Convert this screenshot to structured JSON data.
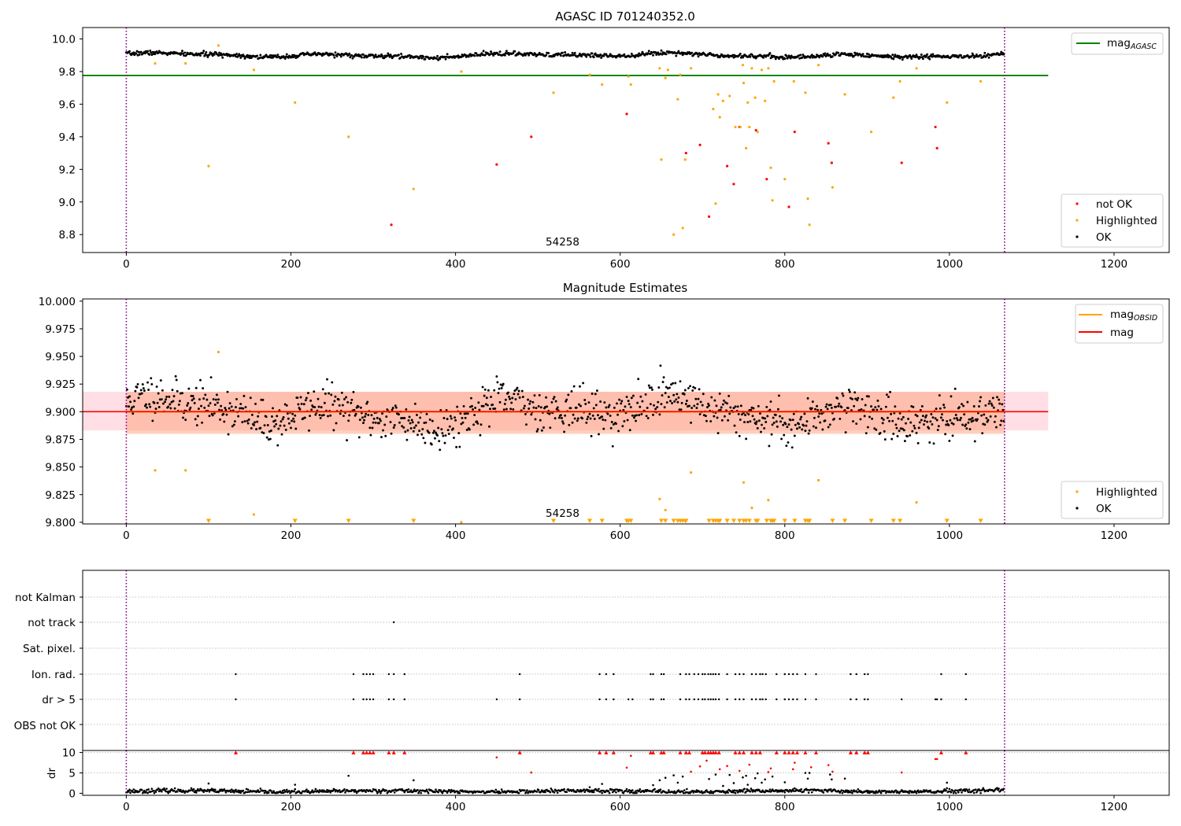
{
  "chart_data": [
    {
      "type": "scatter",
      "title": "AGASC ID 701240352.0",
      "xlim": [
        -53,
        1267
      ],
      "ylim": [
        8.69,
        10.07
      ],
      "xticks": [
        0,
        200,
        400,
        600,
        800,
        1000,
        1200
      ],
      "yticks": [
        8.8,
        9.0,
        9.2,
        9.4,
        9.6,
        9.8,
        10.0
      ],
      "ytick_decimals": 1,
      "grid": false,
      "obsid_label": "54258",
      "obsid_label_x": 530,
      "vlines": [
        0,
        1067
      ],
      "hline": {
        "name": "mag_AGASC",
        "y": 9.776,
        "x": [
          -53,
          1120
        ],
        "color": "#008000"
      },
      "legend_upper": [
        {
          "label": "mag",
          "sub": "AGASC",
          "color": "#008000"
        }
      ],
      "legend_lower": [
        {
          "label": "not OK",
          "color": "#ff0000"
        },
        {
          "label": "Highlighted",
          "color": "#ffa500"
        },
        {
          "label": "OK",
          "color": "#000000"
        }
      ],
      "ok_band": {
        "center": 9.9,
        "noise": 0.012,
        "n": 1067
      },
      "series": [
        {
          "name": "not OK",
          "color": "#ff0000",
          "points": [
            [
              322,
              8.86
            ],
            [
              450,
              9.23
            ],
            [
              492,
              9.4
            ],
            [
              608,
              9.54
            ],
            [
              680,
              9.3
            ],
            [
              697,
              9.35
            ],
            [
              708,
              8.91
            ],
            [
              730,
              9.22
            ],
            [
              738,
              9.11
            ],
            [
              745,
              9.46
            ],
            [
              765,
              9.44
            ],
            [
              778,
              9.14
            ],
            [
              805,
              8.97
            ],
            [
              812,
              9.43
            ],
            [
              853,
              9.36
            ],
            [
              857,
              9.24
            ],
            [
              942,
              9.24
            ],
            [
              983,
              9.46
            ],
            [
              985,
              9.33
            ]
          ]
        },
        {
          "name": "Highlighted",
          "color": "#ffa500",
          "points": [
            [
              35,
              9.85
            ],
            [
              72,
              9.85
            ],
            [
              100,
              9.22
            ],
            [
              112,
              9.96
            ],
            [
              155,
              9.81
            ],
            [
              205,
              9.61
            ],
            [
              270,
              9.4
            ],
            [
              349,
              9.08
            ],
            [
              407,
              9.8
            ],
            [
              519,
              9.67
            ],
            [
              563,
              9.78
            ],
            [
              578,
              9.72
            ],
            [
              610,
              9.77
            ],
            [
              613,
              9.72
            ],
            [
              648,
              9.82
            ],
            [
              650,
              9.26
            ],
            [
              655,
              9.76
            ],
            [
              658,
              9.81
            ],
            [
              665,
              8.8
            ],
            [
              670,
              9.63
            ],
            [
              673,
              9.78
            ],
            [
              676,
              8.84
            ],
            [
              679,
              9.26
            ],
            [
              686,
              9.82
            ],
            [
              713,
              9.57
            ],
            [
              716,
              8.99
            ],
            [
              719,
              9.66
            ],
            [
              721,
              9.52
            ],
            [
              725,
              9.62
            ],
            [
              733,
              9.65
            ],
            [
              740,
              9.46
            ],
            [
              746,
              9.46
            ],
            [
              749,
              9.84
            ],
            [
              750,
              9.73
            ],
            [
              753,
              9.33
            ],
            [
              755,
              9.61
            ],
            [
              757,
              9.46
            ],
            [
              760,
              9.82
            ],
            [
              764,
              9.64
            ],
            [
              767,
              9.43
            ],
            [
              772,
              9.81
            ],
            [
              776,
              9.62
            ],
            [
              780,
              9.82
            ],
            [
              783,
              9.21
            ],
            [
              785,
              9.01
            ],
            [
              787,
              9.74
            ],
            [
              800,
              9.14
            ],
            [
              811,
              9.74
            ],
            [
              825,
              9.67
            ],
            [
              828,
              9.02
            ],
            [
              830,
              8.86
            ],
            [
              841,
              9.84
            ],
            [
              858,
              9.09
            ],
            [
              873,
              9.66
            ],
            [
              905,
              9.43
            ],
            [
              932,
              9.64
            ],
            [
              940,
              9.74
            ],
            [
              960,
              9.82
            ],
            [
              997,
              9.61
            ],
            [
              1038,
              9.74
            ]
          ]
        }
      ]
    },
    {
      "type": "scatter",
      "title": "Magnitude Estimates",
      "xlim": [
        -53,
        1267
      ],
      "ylim": [
        9.7985,
        10.002
      ],
      "xticks": [
        0,
        200,
        400,
        600,
        800,
        1000,
        1200
      ],
      "yticks": [
        9.8,
        9.825,
        9.85,
        9.875,
        9.9,
        9.925,
        9.95,
        9.975,
        10.0
      ],
      "ytick_decimals": 3,
      "grid": false,
      "obsid_label": "54258",
      "obsid_label_x": 530,
      "vlines": [
        0,
        1067
      ],
      "bands": [
        {
          "y": [
            9.883,
            9.918
          ],
          "x": [
            -53,
            1120
          ],
          "color": "#ffc0cb",
          "opacity": 0.5
        },
        {
          "y": [
            9.88,
            9.918
          ],
          "x": [
            0,
            1067
          ],
          "color": "#ffa07a",
          "opacity": 0.5
        }
      ],
      "hlines": [
        {
          "name": "mag_OBSID",
          "y": 9.9,
          "x": [
            0,
            1067
          ],
          "color": "#ffa500"
        },
        {
          "name": "mag",
          "y": 9.9,
          "x": [
            -53,
            1120
          ],
          "color": "#ff0000"
        }
      ],
      "legend_upper": [
        {
          "label": "mag",
          "sub": "OBSID",
          "color": "#ffa500"
        },
        {
          "label": "mag",
          "sub": "",
          "color": "#ff0000"
        }
      ],
      "legend_lower": [
        {
          "label": "Highlighted",
          "color": "#ffa500"
        },
        {
          "label": "OK",
          "color": "#000000"
        }
      ],
      "ok_band": {
        "center": 9.9,
        "noise": 0.017,
        "n": 1067
      },
      "series": [
        {
          "name": "Highlighted",
          "color": "#ffa500",
          "points": [
            [
              35,
              9.847
            ],
            [
              72,
              9.847
            ],
            [
              112,
              9.954
            ],
            [
              155,
              9.807
            ],
            [
              407,
              9.8
            ],
            [
              648,
              9.821
            ],
            [
              655,
              9.811
            ],
            [
              686,
              9.845
            ],
            [
              750,
              9.836
            ],
            [
              760,
              9.813
            ],
            [
              780,
              9.82
            ],
            [
              841,
              9.838
            ],
            [
              960,
              9.818
            ]
          ]
        },
        {
          "name": "below range",
          "color": "#ffa500",
          "marker": "triangle-down",
          "x": [
            100,
            205,
            270,
            349,
            519,
            563,
            578,
            608,
            610,
            613,
            650,
            655,
            665,
            670,
            673,
            676,
            679,
            680,
            708,
            713,
            716,
            719,
            721,
            730,
            738,
            745,
            750,
            753,
            757,
            765,
            767,
            778,
            783,
            785,
            787,
            800,
            812,
            825,
            828,
            830,
            858,
            873,
            905,
            932,
            940,
            997,
            1038
          ],
          "y": 9.801
        }
      ]
    },
    {
      "type": "scatter",
      "title": "",
      "xlim": [
        -53,
        1267
      ],
      "xticks": [
        0,
        200,
        400,
        600,
        800,
        1000,
        1200
      ],
      "vlines": [
        0,
        1067
      ],
      "flag_categories": [
        "OBS not OK",
        "dr > 5",
        "Ion. rad.",
        "Sat. pixel.",
        "not track",
        "not Kalman"
      ],
      "flags": {
        "not track": [
          325
        ],
        "Ion. rad.": [
          133,
          276,
          288,
          292,
          296,
          300,
          319,
          325,
          338,
          478,
          575,
          583,
          592,
          637,
          640,
          650,
          653,
          673,
          680,
          684,
          690,
          695,
          700,
          703,
          707,
          710,
          713,
          716,
          720,
          730,
          740,
          745,
          750,
          760,
          765,
          770,
          773,
          777,
          790,
          800,
          805,
          810,
          815,
          825,
          838,
          880,
          887,
          897,
          901,
          990,
          1020
        ],
        "dr > 5": [
          133,
          276,
          288,
          292,
          296,
          300,
          319,
          325,
          338,
          450,
          478,
          575,
          583,
          592,
          610,
          615,
          637,
          640,
          650,
          653,
          673,
          680,
          684,
          690,
          695,
          700,
          703,
          707,
          710,
          713,
          716,
          720,
          730,
          740,
          745,
          750,
          760,
          765,
          770,
          773,
          777,
          790,
          800,
          805,
          810,
          815,
          825,
          838,
          880,
          887,
          897,
          901,
          942,
          983,
          985,
          990,
          1020
        ]
      },
      "dr_panel": {
        "ylabel": "dr",
        "yticks": [
          0,
          5,
          10
        ],
        "ylim": [
          -0.5,
          10.5
        ],
        "baseline_mean": 0.5,
        "capped": [
          133,
          276,
          288,
          292,
          296,
          300,
          319,
          325,
          338,
          478,
          575,
          583,
          592,
          637,
          640,
          650,
          653,
          673,
          680,
          684,
          700,
          703,
          707,
          710,
          713,
          716,
          720,
          740,
          745,
          750,
          760,
          765,
          770,
          790,
          800,
          805,
          810,
          815,
          825,
          838,
          880,
          887,
          897,
          901,
          990,
          1020
        ],
        "points": [
          [
            100,
            2.4
          ],
          [
            205,
            2.1
          ],
          [
            270,
            4.3
          ],
          [
            349,
            3.2
          ],
          [
            450,
            8.8
          ],
          [
            492,
            5.1
          ],
          [
            563,
            1.5
          ],
          [
            578,
            2.3
          ],
          [
            608,
            6.3
          ],
          [
            613,
            9.2
          ],
          [
            640,
            2.0
          ],
          [
            648,
            3.2
          ],
          [
            655,
            3.8
          ],
          [
            665,
            4.4
          ],
          [
            670,
            2.6
          ],
          [
            676,
            4.1
          ],
          [
            686,
            5.3
          ],
          [
            697,
            6.6
          ],
          [
            705,
            8.0
          ],
          [
            708,
            3.5
          ],
          [
            716,
            4.6
          ],
          [
            721,
            5.9
          ],
          [
            725,
            1.8
          ],
          [
            730,
            6.7
          ],
          [
            733,
            4.5
          ],
          [
            738,
            2.5
          ],
          [
            745,
            5.5
          ],
          [
            749,
            3.9
          ],
          [
            753,
            4.3
          ],
          [
            755,
            2.1
          ],
          [
            757,
            7.0
          ],
          [
            764,
            3.7
          ],
          [
            767,
            4.9
          ],
          [
            772,
            2.6
          ],
          [
            776,
            3.4
          ],
          [
            780,
            5.2
          ],
          [
            783,
            6.1
          ],
          [
            785,
            4.1
          ],
          [
            800,
            2.7
          ],
          [
            810,
            5.9
          ],
          [
            812,
            7.5
          ],
          [
            825,
            5.0
          ],
          [
            828,
            3.6
          ],
          [
            830,
            5.0
          ],
          [
            832,
            6.4
          ],
          [
            853,
            6.9
          ],
          [
            855,
            4.6
          ],
          [
            857,
            3.4
          ],
          [
            858,
            5.3
          ],
          [
            873,
            3.6
          ],
          [
            942,
            5.1
          ],
          [
            983,
            8.4
          ],
          [
            985,
            8.4
          ],
          [
            997,
            2.6
          ]
        ]
      }
    }
  ]
}
